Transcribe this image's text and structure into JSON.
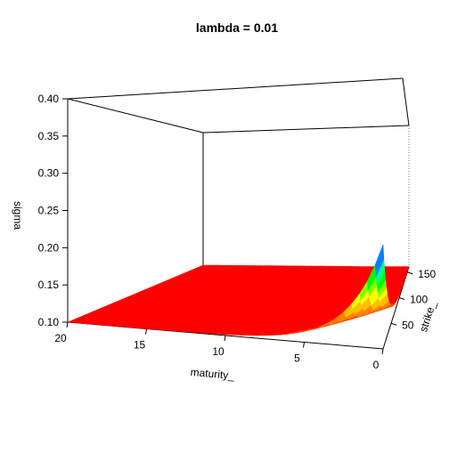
{
  "chart_data": {
    "type": "surface-3d",
    "title": "lambda =  0.01",
    "zlabel": "sigma",
    "xlabel": "maturity_",
    "ylabel": "strike_",
    "zlim": [
      0.1,
      0.4
    ],
    "z_ticks": [
      "0.10",
      "0.15",
      "0.20",
      "0.25",
      "0.30",
      "0.35",
      "0.40"
    ],
    "maturity_ticks": [
      "20",
      "15",
      "10",
      "5",
      "0"
    ],
    "strike_ticks": [
      "50",
      "100",
      "150"
    ],
    "maturity_range": [
      0,
      20
    ],
    "strike_range": [
      0,
      160
    ],
    "surface": {
      "base_sigma": 0.1,
      "peak_sigma": 0.24,
      "peak_at": "maturity 0, lowest strike",
      "description_values": [
        {
          "maturity": 0,
          "strike": 0,
          "sigma": 0.24
        },
        {
          "maturity": 0,
          "strike": 20,
          "sigma": 0.2
        },
        {
          "maturity": 0,
          "strike": 40,
          "sigma": 0.16
        },
        {
          "maturity": 0,
          "strike": 80,
          "sigma": 0.11
        },
        {
          "maturity": 0,
          "strike": 160,
          "sigma": 0.1
        },
        {
          "maturity": 5,
          "strike": 0,
          "sigma": 0.13
        },
        {
          "maturity": 10,
          "strike": 0,
          "sigma": 0.11
        },
        {
          "maturity": 20,
          "strike": 0,
          "sigma": 0.1
        }
      ]
    },
    "colors": [
      "#ff0000",
      "#ff4000",
      "#ff8000",
      "#ffbf00",
      "#ffff00",
      "#80ff00",
      "#00ff00",
      "#00ff80",
      "#0080ff",
      "#0000ff",
      "#4000ff"
    ],
    "grid": false,
    "legend": "none"
  }
}
